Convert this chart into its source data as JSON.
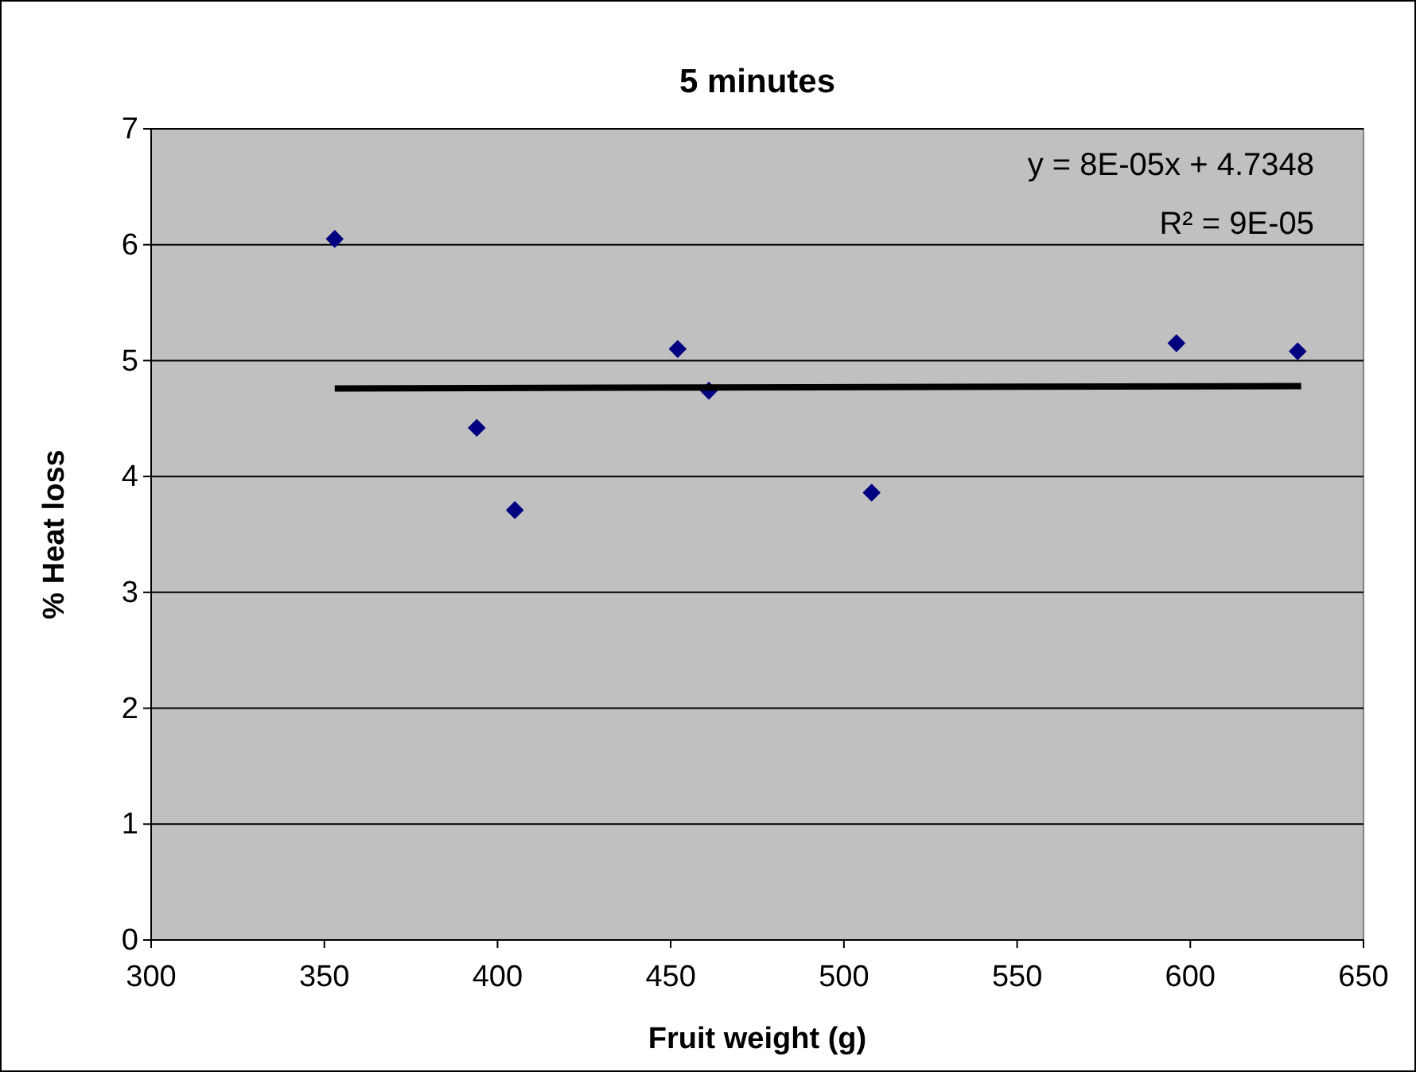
{
  "chart_data": {
    "type": "scatter",
    "title": "5 minutes",
    "xlabel": "Fruit weight (g)",
    "ylabel": "% Heat loss",
    "xlim": [
      300,
      650
    ],
    "xticks": [
      300,
      350,
      400,
      450,
      500,
      550,
      600,
      650
    ],
    "ylim": [
      0,
      7
    ],
    "yticks": [
      0,
      1,
      2,
      3,
      4,
      5,
      6,
      7
    ],
    "grid": "y",
    "marker": "diamond",
    "annotations": [
      "y = 8E-05x + 4.7348",
      "R² = 9E-05"
    ],
    "series": [
      {
        "color": "#000080",
        "x": [
          353,
          394,
          405,
          452,
          461,
          508,
          596,
          631
        ],
        "values": [
          6.05,
          4.42,
          3.71,
          5.1,
          4.74,
          3.86,
          5.15,
          5.08
        ]
      },
      {
        "type": "line",
        "color": "#000000",
        "x": [
          353,
          632
        ],
        "values": [
          4.76,
          4.78
        ],
        "marker": "none",
        "line_style": "solid"
      }
    ]
  }
}
